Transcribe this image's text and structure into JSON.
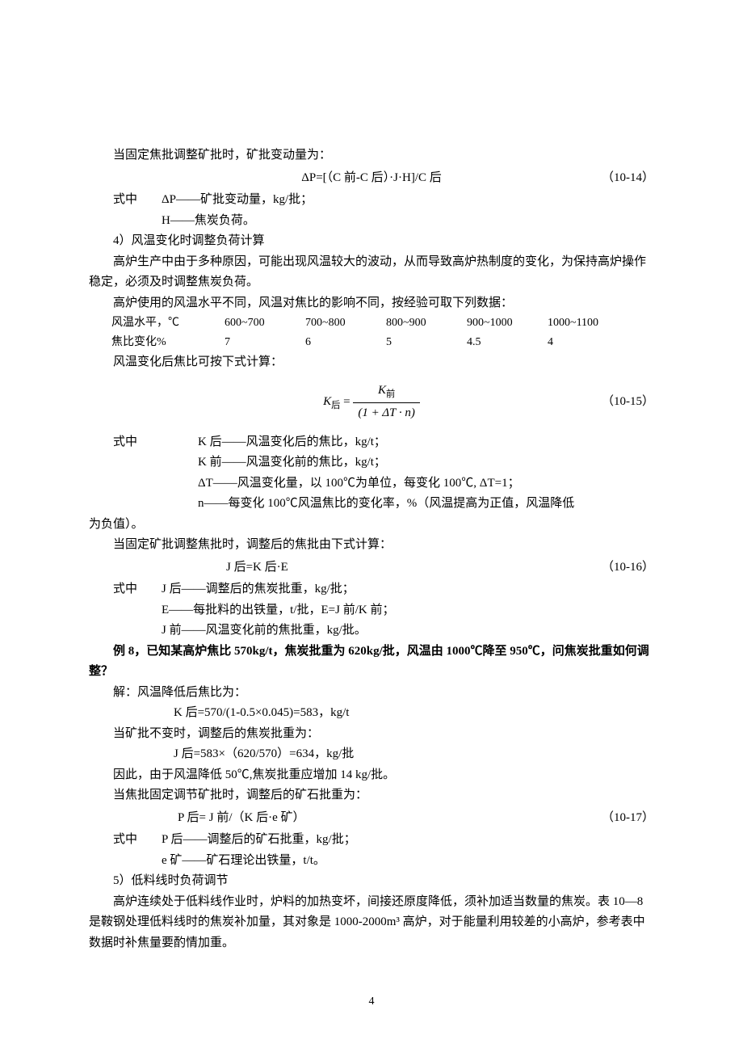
{
  "p1": "当固定焦批调整矿批时，矿批变动量为：",
  "eq14": {
    "formula": "ΔP=[（C 前-C 后）·J·H]/C 后",
    "num": "（10-14）"
  },
  "p2_label": "式中",
  "p2_body": "ΔP——矿批变动量，kg/批；",
  "p3": "H——焦炭负荷。",
  "p4": "4）风温变化时调整负荷计算",
  "p5": "高炉生产中由于多种原因，可能出现风温较大的波动，从而导致高炉热制度的变化，为保持高炉操作稳定，必须及时调整焦炭负荷。",
  "p6": "高炉使用的风温水平不同，风温对焦比的影响不同，按经验可取下列数据：",
  "table": {
    "row1_h": "风温水平，℃",
    "row1": [
      "600~700",
      "700~800",
      "800~900",
      "900~1000",
      "1000~1100"
    ],
    "row2_h": "焦比变化%",
    "row2": [
      "7",
      "6",
      "5",
      "4.5",
      "4"
    ]
  },
  "p7": "风温变化后焦比可按下式计算：",
  "eq15": {
    "lhs": "K",
    "lhs_sub": "后",
    "eq": " = ",
    "num_top": "K",
    "num_top_sub": "前",
    "den": "(1 + ΔT · n)",
    "num": "（10-15）"
  },
  "p8_label": "式中",
  "p8_body": "K 后——风温变化后的焦比，kg/t；",
  "p9": "K 前——风温变化前的焦比，kg/t；",
  "p10": "ΔT——风温变化量，以 100℃为单位，每变化 100℃, ΔT=1；",
  "p11": "n——每变化 100℃风温焦比的变化率，%（风温提高为正值，风温降低",
  "p11b": "为负值）。",
  "p12": "当固定矿批调整焦批时，调整后的焦批由下式计算：",
  "eq16": {
    "formula": "J 后=K 后·E",
    "num": "（10-16）"
  },
  "p13_label": "式中",
  "p13_body": "J 后——调整后的焦炭批重，kg/批；",
  "p14": "E——每批料的出铁量，t/批，E=J 前/K 前；",
  "p15": "J 前——风温变化前的焦批重，kg/批。",
  "p16": "例 8，已知某高炉焦比 570kg/t，焦炭批重为 620kg/批，风温由 1000℃降至 950℃，问焦炭批重如何调整？",
  "p17": "解：风温降低后焦比为：",
  "p18": "K 后=570/(1-0.5×0.045)=583，kg/t",
  "p19": "当矿批不变时，调整后的焦炭批重为：",
  "p20": "J 后=583×（620/570）=634，kg/批",
  "p21": "因此，由于风温降低 50℃,焦炭批重应增加 14 kg/批。",
  "p22": "当焦批固定调节矿批时，调整后的矿石批重为：",
  "eq17": {
    "formula": "P 后= J 前/（K 后·e 矿）",
    "num": "（10-17）"
  },
  "p23_label": "式中",
  "p23_body": "P 后——调整后的矿石批重，kg/批；",
  "p24": "e 矿——矿石理论出铁量，t/t。",
  "p25": "5）低料线时负荷调节",
  "p26": "高炉连续处于低料线作业时，炉料的加热变坏，间接还原度降低，须补加适当数量的焦炭。表 10—8 是鞍钢处理低料线时的焦炭补加量，其对象是 1000-2000m³ 高炉，对于能量利用较差的小高炉，参考表中数据时补焦量要酌情加重。",
  "page_num": "4"
}
